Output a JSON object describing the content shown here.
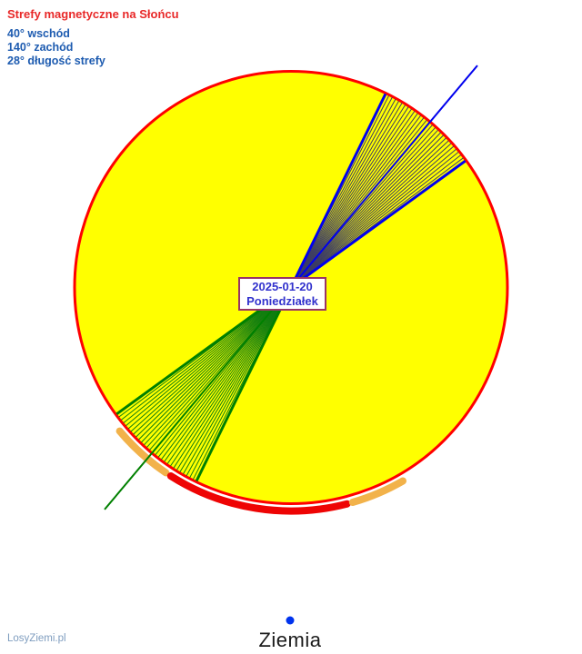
{
  "header": {
    "title": "Strefy magnetyczne na Słońcu",
    "east": "40° wschód",
    "west": "140° zachód",
    "zone_length": "28° długość strefy"
  },
  "center_label": {
    "date": "2025-01-20",
    "weekday": "Poniedziałek"
  },
  "earth": {
    "label": "Ziemia"
  },
  "watermark": "LosyZiemi.pl",
  "colors": {
    "title": "#e82828",
    "header_info": "#1d5bb0",
    "sun_fill": "#ffff00",
    "sun_border": "#ff0000",
    "label_border": "#993366",
    "label_text": "#3232cd",
    "earth_dot": "#0033ee",
    "earth_label": "#1a1a1a",
    "watermark": "#7f9dbf"
  },
  "zones": [
    {
      "name": "east-zone",
      "start_deg": 36,
      "end_deg": 64,
      "center_deg": 50,
      "boundary_color": "#0000ee",
      "thin_color": "#3c3c64"
    },
    {
      "name": "west-zone",
      "start_deg": 216,
      "end_deg": 244,
      "center_deg": 230,
      "boundary_color": "#008000",
      "thin_color": "#0f7d0f"
    }
  ],
  "limb_arcs": [
    {
      "name": "west-limb-orange",
      "start_deg": 220,
      "end_deg": 236,
      "color": "#f2b24a",
      "cap": "round"
    },
    {
      "name": "bottom-limb-red",
      "start_deg": 237.5,
      "end_deg": 284.5,
      "color": "#ee0404",
      "cap": "round"
    },
    {
      "name": "east-limb-orange",
      "start_deg": 286,
      "end_deg": 300,
      "color": "#f2b24a",
      "cap": "round"
    }
  ]
}
